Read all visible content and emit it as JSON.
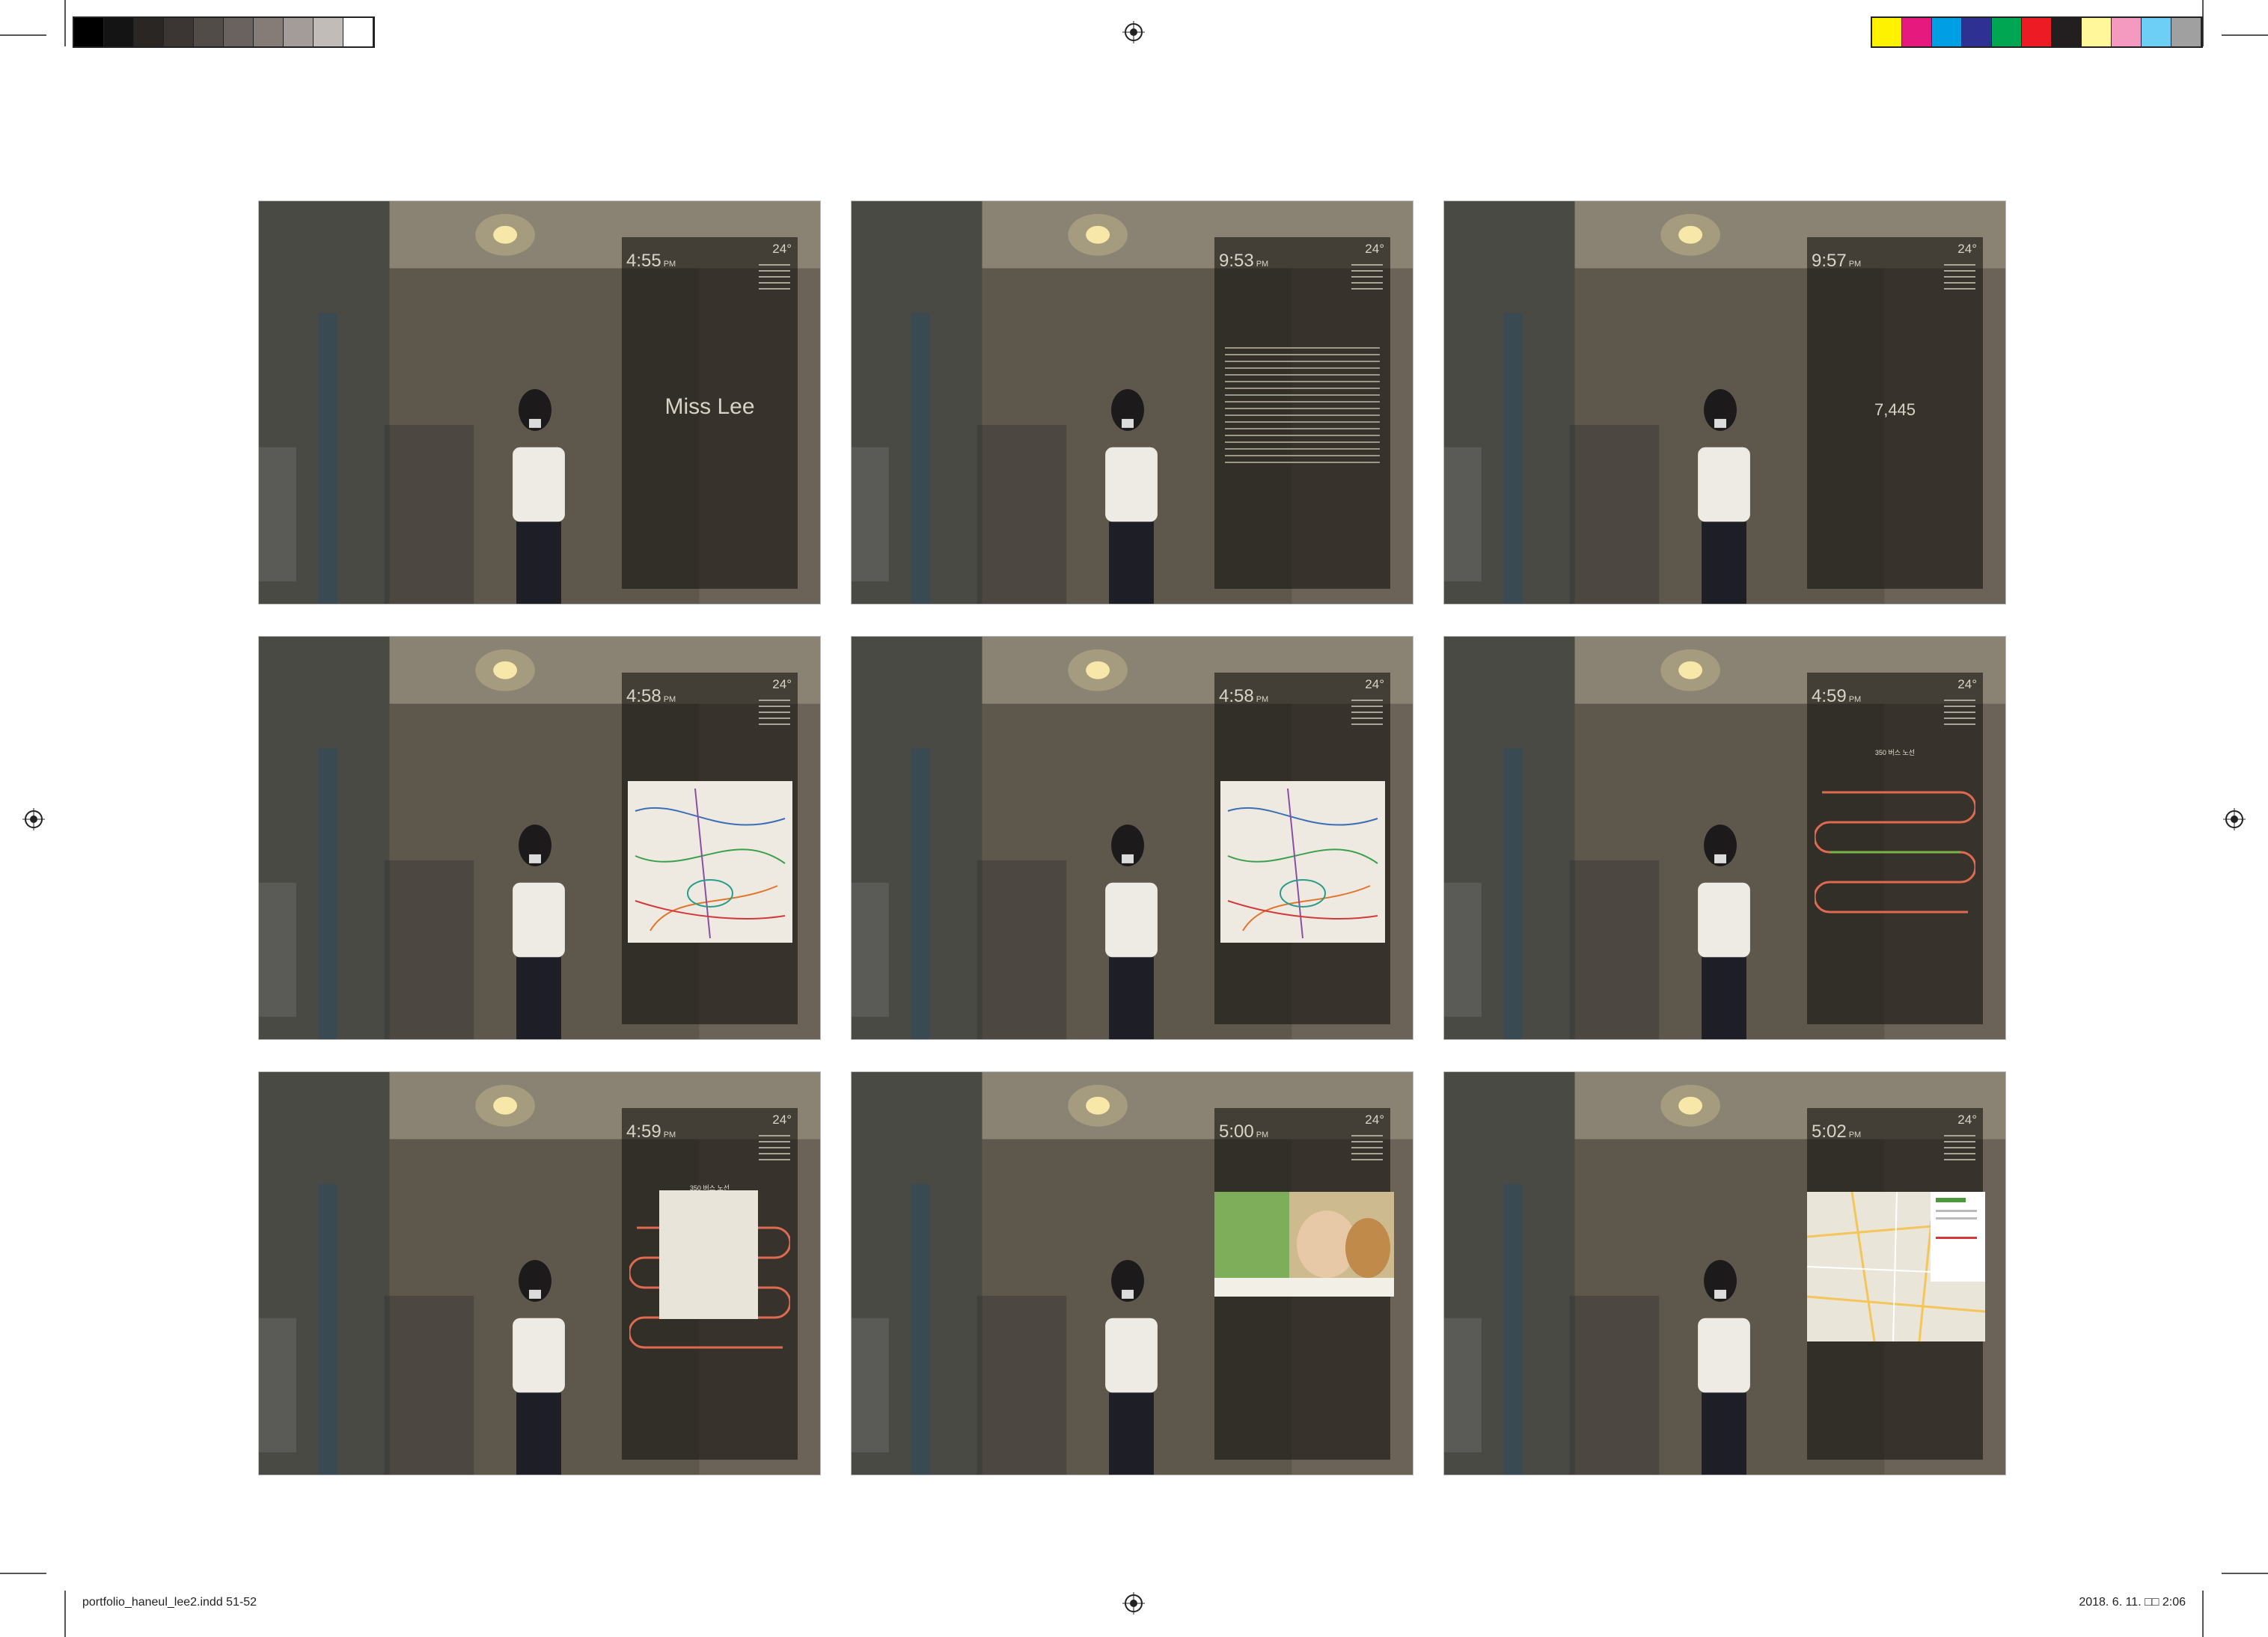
{
  "slug": {
    "file": "portfolio_haneul_lee2.indd   51-52",
    "date": "2018. 6. 11.   □□ 2:06"
  },
  "colors": {
    "gray_bar": [
      "#000000",
      "#141414",
      "#2a2624",
      "#3b3634",
      "#524c48",
      "#6a625e",
      "#857c78",
      "#a39c98",
      "#c2bcb8",
      "#ffffff"
    ],
    "cmyk_bar": [
      "#fff200",
      "#e6197e",
      "#009fe3",
      "#2e3192",
      "#00a651",
      "#ed1c24",
      "#231f20",
      "#fff799",
      "#f49ac1",
      "#6dcff6",
      "#a0a0a0"
    ],
    "panel": "#181612"
  },
  "screens": [
    {
      "kind": "greeting",
      "time": "4:55",
      "ampm": "PM",
      "temp": "24°",
      "name": "Miss Lee"
    },
    {
      "kind": "news",
      "time": "9:53",
      "ampm": "PM",
      "temp": "24°"
    },
    {
      "kind": "steps",
      "time": "9:57",
      "ampm": "PM",
      "temp": "24°",
      "steps": "7,445"
    },
    {
      "kind": "subway",
      "time": "4:58",
      "ampm": "PM",
      "temp": "24°"
    },
    {
      "kind": "subway",
      "time": "4:58",
      "ampm": "PM",
      "temp": "24°"
    },
    {
      "kind": "bus",
      "time": "4:59",
      "ampm": "PM",
      "temp": "24°",
      "bus_label": "350 버스 노선"
    },
    {
      "kind": "bus-popup",
      "time": "4:59",
      "ampm": "PM",
      "temp": "24°",
      "bus_label": "350 버스 노선"
    },
    {
      "kind": "video",
      "time": "5:00",
      "ampm": "PM",
      "temp": "24°"
    },
    {
      "kind": "map",
      "time": "5:02",
      "ampm": "PM",
      "temp": "24°"
    }
  ]
}
